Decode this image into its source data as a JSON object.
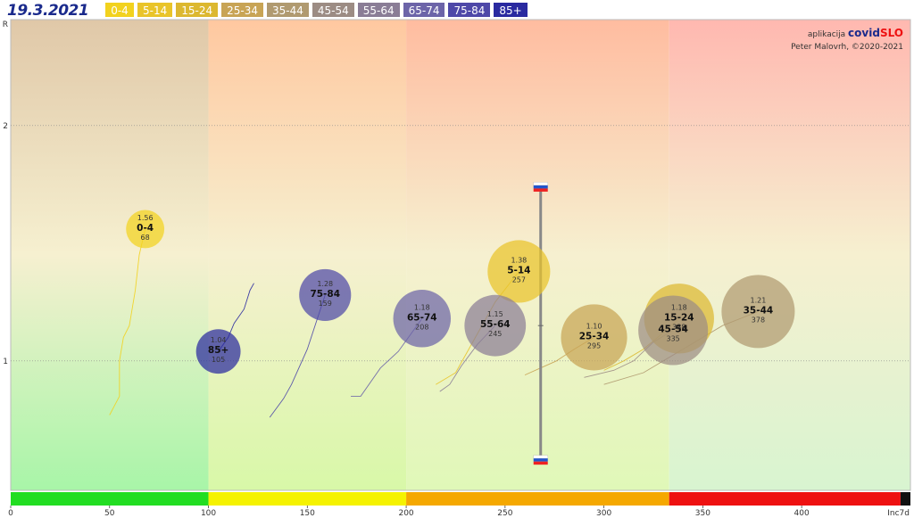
{
  "header": {
    "date": "19.3.2021",
    "credit_app_prefix": "aplikacija",
    "credit_app_name_1": "covid",
    "credit_app_name_2": "SLO",
    "credit_author": "Peter Malovrh, ©2020-2021"
  },
  "legend": [
    {
      "label": "0-4",
      "color": "#f2d21e"
    },
    {
      "label": "5-14",
      "color": "#e9c42a"
    },
    {
      "label": "15-24",
      "color": "#dcb830"
    },
    {
      "label": "25-34",
      "color": "#c8a455"
    },
    {
      "label": "35-44",
      "color": "#b09a70"
    },
    {
      "label": "45-54",
      "color": "#9c8c84"
    },
    {
      "label": "55-64",
      "color": "#8a7d96"
    },
    {
      "label": "65-74",
      "color": "#6c64a8"
    },
    {
      "label": "75-84",
      "color": "#4e48a8"
    },
    {
      "label": "85+",
      "color": "#2a2aa0"
    }
  ],
  "chart_data": {
    "type": "scatter",
    "xlabel": "Inc7d",
    "ylabel": "R",
    "xlim": [
      0,
      455
    ],
    "ylim": [
      0.45,
      2.45
    ],
    "x_ticks": [
      0,
      50,
      100,
      150,
      200,
      250,
      300,
      350,
      400
    ],
    "x_tick_labels": [
      "0",
      "50",
      "100",
      "150",
      "200",
      "250",
      "300",
      "350",
      "400"
    ],
    "y_ticks": [
      1,
      2
    ],
    "y_tick_labels": [
      "1",
      "2"
    ],
    "zones": [
      {
        "from": 0,
        "to": 100,
        "color": "#22dd22"
      },
      {
        "from": 100,
        "to": 200,
        "color": "#f5f200"
      },
      {
        "from": 200,
        "to": 333,
        "color": "#f5a800"
      },
      {
        "from": 333,
        "to": 450,
        "color": "#ee1111"
      },
      {
        "from": 450,
        "to": 455,
        "color": "#111111"
      }
    ],
    "series": [
      {
        "name": "0-4",
        "x": 68,
        "r_value": 1.56,
        "r_label": "1.56",
        "inc_label": "68",
        "color": "#f2d21e",
        "trail_x": [
          50,
          55,
          55,
          57,
          60,
          63,
          65,
          68
        ],
        "trail_y": [
          0.77,
          0.85,
          1.0,
          1.1,
          1.15,
          1.3,
          1.45,
          1.56
        ]
      },
      {
        "name": "5-14",
        "x": 257,
        "r_value": 1.38,
        "r_label": "1.38",
        "inc_label": "257",
        "color": "#e9c42a",
        "trail_x": [
          215,
          225,
          235,
          245,
          257
        ],
        "trail_y": [
          0.9,
          0.95,
          1.1,
          1.25,
          1.38
        ]
      },
      {
        "name": "15-24",
        "x": 338,
        "r_value": 1.18,
        "r_label": "1.18",
        "inc_label": "338",
        "color": "#dcb830",
        "trail_x": [
          300,
          310,
          320,
          330,
          338
        ],
        "trail_y": [
          0.96,
          1.0,
          1.05,
          1.12,
          1.18
        ]
      },
      {
        "name": "25-34",
        "x": 295,
        "r_value": 1.1,
        "r_label": "1.10",
        "inc_label": "295",
        "color": "#c8a455",
        "trail_x": [
          260,
          268,
          276,
          285,
          295
        ],
        "trail_y": [
          0.94,
          0.97,
          1.0,
          1.05,
          1.1
        ]
      },
      {
        "name": "35-44",
        "x": 378,
        "r_value": 1.21,
        "r_label": "1.21",
        "inc_label": "378",
        "color": "#b09a70",
        "trail_x": [
          300,
          320,
          340,
          360,
          378
        ],
        "trail_y": [
          0.9,
          0.95,
          1.05,
          1.15,
          1.21
        ]
      },
      {
        "name": "45-54",
        "x": 335,
        "r_value": 1.13,
        "r_label": "",
        "inc_label": "335",
        "color": "#9c8c84",
        "trail_x": [
          290,
          305,
          315,
          325,
          335
        ],
        "trail_y": [
          0.93,
          0.96,
          1.0,
          1.08,
          1.13
        ]
      },
      {
        "name": "55-64",
        "x": 245,
        "r_value": 1.15,
        "r_label": "1.15",
        "inc_label": "245",
        "color": "#8a7d96",
        "trail_x": [
          217,
          222,
          228,
          236,
          245
        ],
        "trail_y": [
          0.87,
          0.9,
          0.98,
          1.07,
          1.15
        ]
      },
      {
        "name": "65-74",
        "x": 208,
        "r_value": 1.18,
        "r_label": "1.18",
        "inc_label": "208",
        "color": "#6c64a8",
        "trail_x": [
          172,
          177,
          187,
          196,
          208
        ],
        "trail_y": [
          0.85,
          0.85,
          0.97,
          1.04,
          1.18
        ]
      },
      {
        "name": "75-84",
        "x": 159,
        "r_value": 1.28,
        "r_label": "1.28",
        "inc_label": "159",
        "color": "#4e48a8",
        "trail_x": [
          131,
          138,
          142,
          150,
          159
        ],
        "trail_y": [
          0.76,
          0.84,
          0.9,
          1.05,
          1.28
        ]
      },
      {
        "name": "85+",
        "x": 105,
        "r_value": 1.04,
        "r_label": "1.04",
        "inc_label": "105",
        "color": "#2a2aa0",
        "trail_x": [
          105,
          110,
          113,
          118,
          121,
          123
        ],
        "trail_y": [
          1.04,
          1.1,
          1.16,
          1.22,
          1.3,
          1.33
        ]
      }
    ],
    "slovenia_marker": {
      "x": 268,
      "r_high": 1.74,
      "r_low": 0.58,
      "r_mid": 1.15
    }
  }
}
